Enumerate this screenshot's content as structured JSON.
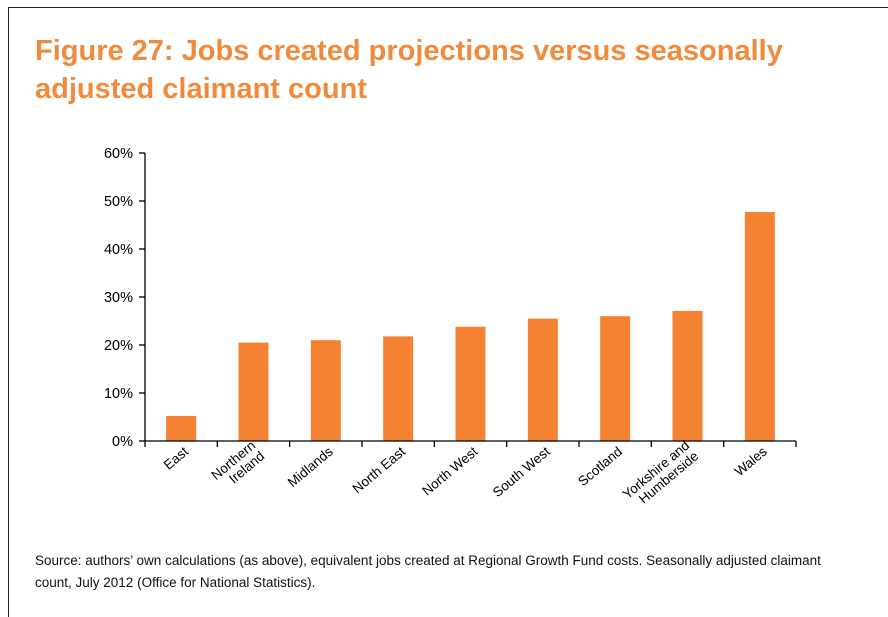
{
  "figure": {
    "title": "Figure 27: Jobs created projections versus seasonally adjusted claimant count",
    "source": "Source: authors’ own calculations (as above), equivalent jobs created at Regional Growth Fund costs. Seasonally adjusted claimant count, July 2012 (Office for National Statistics)."
  },
  "colors": {
    "accent": "#f08a3c",
    "bar": "#f58232",
    "axis": "#000000"
  },
  "chart_data": {
    "type": "bar",
    "categories": [
      [
        "East"
      ],
      [
        "Northern",
        "Ireland"
      ],
      [
        "Midlands"
      ],
      [
        "North East"
      ],
      [
        "North West"
      ],
      [
        "South West"
      ],
      [
        "Scotland"
      ],
      [
        "Yorkshire and",
        "Humberside"
      ],
      [
        "Wales"
      ]
    ],
    "values": [
      5.2,
      20.5,
      21.0,
      21.8,
      23.8,
      25.5,
      26.0,
      27.1,
      47.7
    ],
    "unit": "%",
    "ylim": [
      0,
      60
    ],
    "yticks": [
      "0%",
      "10%",
      "20%",
      "30%",
      "40%",
      "50%",
      "60%"
    ],
    "grid": false,
    "legend": "none"
  }
}
